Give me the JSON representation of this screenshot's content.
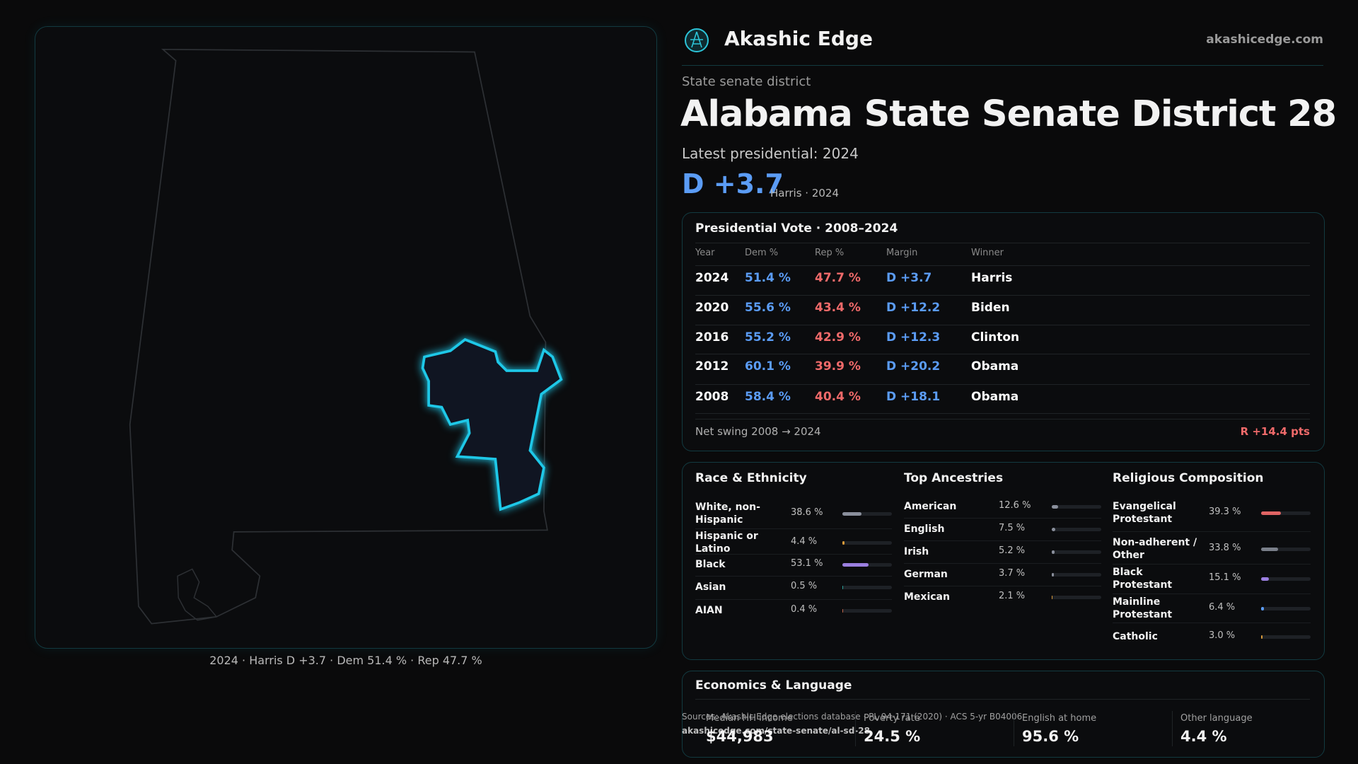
{
  "header": {
    "brand": "Akashic Edge",
    "site": "akashicedge.com"
  },
  "page": {
    "kicker": "State senate district",
    "title": "Alabama State Senate District 28",
    "latest": "Latest presidential: 2024",
    "margin": "D +3.7",
    "margin_note": "Harris · 2024"
  },
  "map": {
    "caption": "2024 · Harris D +3.7 · Dem 51.4 % · Rep 47.7 %"
  },
  "presidential": {
    "title": "Presidential Vote · 2008–2024",
    "columns": [
      "Year",
      "Dem %",
      "Rep %",
      "Margin",
      "Winner"
    ],
    "rows": [
      [
        "2024",
        "51.4 %",
        "47.7 %",
        "D +3.7",
        "Harris"
      ],
      [
        "2020",
        "55.6 %",
        "43.4 %",
        "D +12.2",
        "Biden"
      ],
      [
        "2016",
        "55.2 %",
        "42.9 %",
        "D +12.3",
        "Clinton"
      ],
      [
        "2012",
        "60.1 %",
        "39.9 %",
        "D +20.2",
        "Obama"
      ],
      [
        "2008",
        "58.4 %",
        "40.4 %",
        "D +18.1",
        "Obama"
      ]
    ],
    "swing_label": "Net swing 2008 → 2024",
    "swing": "R +14.4 pts"
  },
  "race": {
    "title": "Race & Ethnicity",
    "items": [
      {
        "label": "White, non-Hispanic",
        "value": 38.6,
        "value_label": "38.6 %",
        "color": "#8a8f9c"
      },
      {
        "label": "Hispanic or Latino",
        "value": 4.4,
        "value_label": "4.4 %",
        "color": "#d99a3a"
      },
      {
        "label": "Black",
        "value": 53.1,
        "value_label": "53.1 %",
        "color": "#9b7fe0"
      },
      {
        "label": "Asian",
        "value": 0.5,
        "value_label": "0.5 %",
        "color": "#2aa198"
      },
      {
        "label": "AIAN",
        "value": 0.4,
        "value_label": "0.4 %",
        "color": "#c0664a"
      }
    ]
  },
  "ancestry": {
    "title": "Top Ancestries",
    "items": [
      {
        "label": "American",
        "value": 12.6,
        "value_label": "12.6 %",
        "color": "#8a8f9c"
      },
      {
        "label": "English",
        "value": 7.5,
        "value_label": "7.5 %",
        "color": "#8a8f9c"
      },
      {
        "label": "Irish",
        "value": 5.2,
        "value_label": "5.2 %",
        "color": "#8a8f9c"
      },
      {
        "label": "German",
        "value": 3.7,
        "value_label": "3.7 %",
        "color": "#8a8f9c"
      },
      {
        "label": "Mexican",
        "value": 2.1,
        "value_label": "2.1 %",
        "color": "#d99a3a"
      }
    ]
  },
  "religion": {
    "title": "Religious Composition",
    "items": [
      {
        "label": "Evangelical Protestant",
        "value": 39.3,
        "value_label": "39.3 %",
        "color": "#e06464"
      },
      {
        "label": "Non-adherent / Other",
        "value": 33.8,
        "value_label": "33.8 %",
        "color": "#7a7f8a"
      },
      {
        "label": "Black Protestant",
        "value": 15.1,
        "value_label": "15.1 %",
        "color": "#9b7fe0"
      },
      {
        "label": "Mainline Protestant",
        "value": 6.4,
        "value_label": "6.4 %",
        "color": "#5b9cf5"
      },
      {
        "label": "Catholic",
        "value": 3.0,
        "value_label": "3.0 %",
        "color": "#d99a3a"
      }
    ]
  },
  "economics": {
    "title": "Economics & Language",
    "metrics": [
      {
        "label": "Median HH income",
        "value": "$44,983"
      },
      {
        "label": "Poverty rate",
        "value": "24.5 %"
      },
      {
        "label": "English at home",
        "value": "95.6 %"
      },
      {
        "label": "Other language",
        "value": "4.4 %"
      }
    ]
  },
  "sources": [
    "Sources: Akashic Edge elections database · PL 94-171 (2020) · ACS 5-yr B04006",
    "akashicedge.com/state-senate/al-sd-28"
  ]
}
